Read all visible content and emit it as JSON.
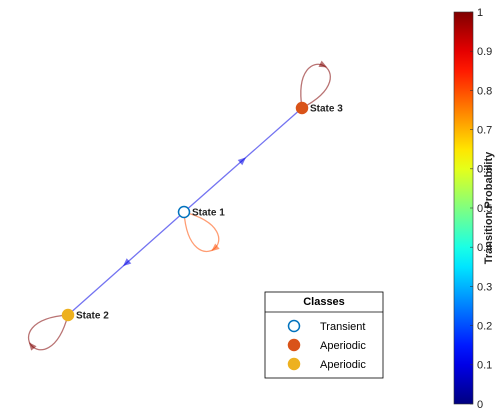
{
  "nodes": [
    {
      "label": "State 1",
      "color": "#0072bd",
      "filled": false
    },
    {
      "label": "State 2",
      "color": "#edb120",
      "filled": true
    },
    {
      "label": "State 3",
      "color": "#d95319",
      "filled": true
    }
  ],
  "edges": [
    {
      "from": 0,
      "to": 0,
      "probability": 0.8
    },
    {
      "from": 0,
      "to": 1,
      "probability": 0.1
    },
    {
      "from": 0,
      "to": 2,
      "probability": 0.1
    },
    {
      "from": 1,
      "to": 1,
      "probability": 1
    },
    {
      "from": 2,
      "to": 2,
      "probability": 1
    }
  ],
  "legend": {
    "title": "Classes",
    "entries": [
      {
        "label": "Transient",
        "color": "#0072bd",
        "filled": false
      },
      {
        "label": "Aperiodic",
        "color": "#d95319",
        "filled": true
      },
      {
        "label": "Aperiodic",
        "color": "#edb120",
        "filled": true
      }
    ]
  },
  "colorbar": {
    "label": "Transition Probability",
    "lim": [
      0,
      1
    ],
    "ticks": [
      0,
      0.1,
      0.2,
      0.3,
      0.4,
      0.5,
      0.6,
      0.7,
      0.8,
      0.9,
      1
    ]
  }
}
